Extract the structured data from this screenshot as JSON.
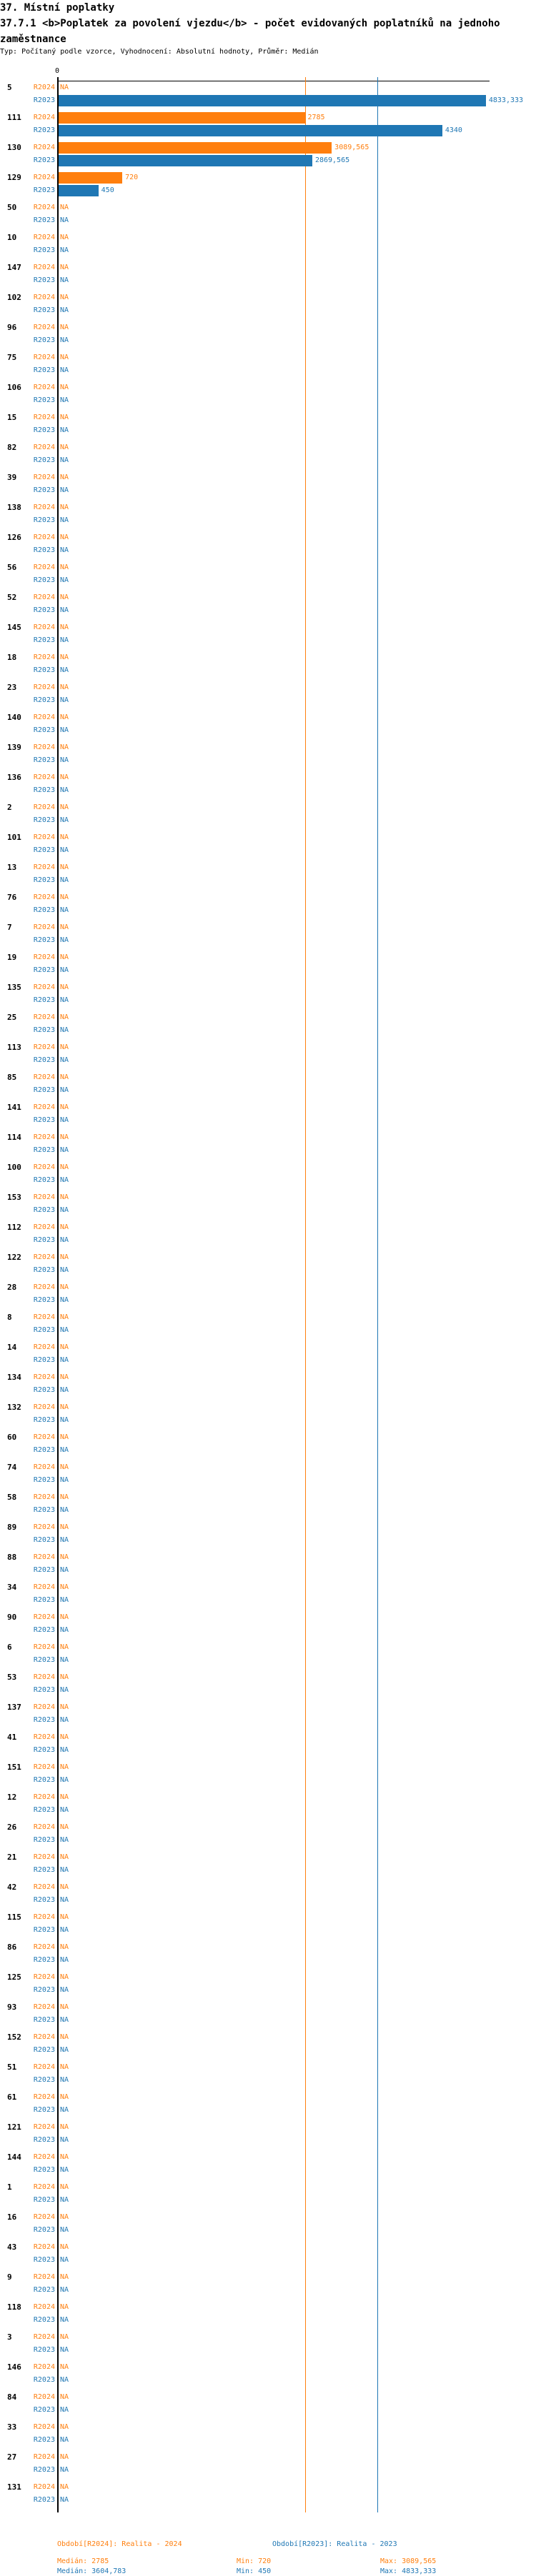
{
  "header": {
    "section_title": "37. Místní poplatky",
    "chart_title": "37.7.1 <b>Poplatek za povolení vjezdu</b> - počet evidovaných poplatníků na jednoho zaměstnance",
    "subtitle": "Typ: Počítaný podle vzorce, Vyhodnocení: Absolutní hodnoty, Průměr: Medián"
  },
  "chart_data": {
    "type": "bar",
    "orientation": "horizontal",
    "axis_tick_label": "0",
    "na_label": "NA",
    "colors": {
      "R2024": "#ff7f0e",
      "R2023": "#1f77b4"
    },
    "series_codes": [
      "R2024",
      "R2023"
    ],
    "rows": [
      {
        "label": "5",
        "R2024": null,
        "R2023": "4833,333"
      },
      {
        "label": "111",
        "R2024": "2785",
        "R2023": "4340"
      },
      {
        "label": "130",
        "R2024": "3089,565",
        "R2023": "2869,565"
      },
      {
        "label": "129",
        "R2024": "720",
        "R2023": "450"
      },
      {
        "label": "50",
        "R2024": null,
        "R2023": null
      },
      {
        "label": "10",
        "R2024": null,
        "R2023": null
      },
      {
        "label": "147",
        "R2024": null,
        "R2023": null
      },
      {
        "label": "102",
        "R2024": null,
        "R2023": null
      },
      {
        "label": "96",
        "R2024": null,
        "R2023": null
      },
      {
        "label": "75",
        "R2024": null,
        "R2023": null
      },
      {
        "label": "106",
        "R2024": null,
        "R2023": null
      },
      {
        "label": "15",
        "R2024": null,
        "R2023": null
      },
      {
        "label": "82",
        "R2024": null,
        "R2023": null
      },
      {
        "label": "39",
        "R2024": null,
        "R2023": null
      },
      {
        "label": "138",
        "R2024": null,
        "R2023": null
      },
      {
        "label": "126",
        "R2024": null,
        "R2023": null
      },
      {
        "label": "56",
        "R2024": null,
        "R2023": null
      },
      {
        "label": "52",
        "R2024": null,
        "R2023": null
      },
      {
        "label": "145",
        "R2024": null,
        "R2023": null
      },
      {
        "label": "18",
        "R2024": null,
        "R2023": null
      },
      {
        "label": "23",
        "R2024": null,
        "R2023": null
      },
      {
        "label": "140",
        "R2024": null,
        "R2023": null
      },
      {
        "label": "139",
        "R2024": null,
        "R2023": null
      },
      {
        "label": "136",
        "R2024": null,
        "R2023": null
      },
      {
        "label": "2",
        "R2024": null,
        "R2023": null
      },
      {
        "label": "101",
        "R2024": null,
        "R2023": null
      },
      {
        "label": "13",
        "R2024": null,
        "R2023": null
      },
      {
        "label": "76",
        "R2024": null,
        "R2023": null
      },
      {
        "label": "7",
        "R2024": null,
        "R2023": null
      },
      {
        "label": "19",
        "R2024": null,
        "R2023": null
      },
      {
        "label": "135",
        "R2024": null,
        "R2023": null
      },
      {
        "label": "25",
        "R2024": null,
        "R2023": null
      },
      {
        "label": "113",
        "R2024": null,
        "R2023": null
      },
      {
        "label": "85",
        "R2024": null,
        "R2023": null
      },
      {
        "label": "141",
        "R2024": null,
        "R2023": null
      },
      {
        "label": "114",
        "R2024": null,
        "R2023": null
      },
      {
        "label": "100",
        "R2024": null,
        "R2023": null
      },
      {
        "label": "153",
        "R2024": null,
        "R2023": null
      },
      {
        "label": "112",
        "R2024": null,
        "R2023": null
      },
      {
        "label": "122",
        "R2024": null,
        "R2023": null
      },
      {
        "label": "28",
        "R2024": null,
        "R2023": null
      },
      {
        "label": "8",
        "R2024": null,
        "R2023": null
      },
      {
        "label": "14",
        "R2024": null,
        "R2023": null
      },
      {
        "label": "134",
        "R2024": null,
        "R2023": null
      },
      {
        "label": "132",
        "R2024": null,
        "R2023": null
      },
      {
        "label": "60",
        "R2024": null,
        "R2023": null
      },
      {
        "label": "74",
        "R2024": null,
        "R2023": null
      },
      {
        "label": "58",
        "R2024": null,
        "R2023": null
      },
      {
        "label": "89",
        "R2024": null,
        "R2023": null
      },
      {
        "label": "88",
        "R2024": null,
        "R2023": null
      },
      {
        "label": "34",
        "R2024": null,
        "R2023": null
      },
      {
        "label": "90",
        "R2024": null,
        "R2023": null
      },
      {
        "label": "6",
        "R2024": null,
        "R2023": null
      },
      {
        "label": "53",
        "R2024": null,
        "R2023": null
      },
      {
        "label": "137",
        "R2024": null,
        "R2023": null
      },
      {
        "label": "41",
        "R2024": null,
        "R2023": null
      },
      {
        "label": "151",
        "R2024": null,
        "R2023": null
      },
      {
        "label": "12",
        "R2024": null,
        "R2023": null
      },
      {
        "label": "26",
        "R2024": null,
        "R2023": null
      },
      {
        "label": "21",
        "R2024": null,
        "R2023": null
      },
      {
        "label": "42",
        "R2024": null,
        "R2023": null
      },
      {
        "label": "115",
        "R2024": null,
        "R2023": null
      },
      {
        "label": "86",
        "R2024": null,
        "R2023": null
      },
      {
        "label": "125",
        "R2024": null,
        "R2023": null
      },
      {
        "label": "93",
        "R2024": null,
        "R2023": null
      },
      {
        "label": "152",
        "R2024": null,
        "R2023": null
      },
      {
        "label": "51",
        "R2024": null,
        "R2023": null
      },
      {
        "label": "61",
        "R2024": null,
        "R2023": null
      },
      {
        "label": "121",
        "R2024": null,
        "R2023": null
      },
      {
        "label": "144",
        "R2024": null,
        "R2023": null
      },
      {
        "label": "1",
        "R2024": null,
        "R2023": null
      },
      {
        "label": "16",
        "R2024": null,
        "R2023": null
      },
      {
        "label": "43",
        "R2024": null,
        "R2023": null
      },
      {
        "label": "9",
        "R2024": null,
        "R2023": null
      },
      {
        "label": "118",
        "R2024": null,
        "R2023": null
      },
      {
        "label": "3",
        "R2024": null,
        "R2023": null
      },
      {
        "label": "146",
        "R2024": null,
        "R2023": null
      },
      {
        "label": "84",
        "R2024": null,
        "R2023": null
      },
      {
        "label": "33",
        "R2024": null,
        "R2023": null
      },
      {
        "label": "27",
        "R2024": null,
        "R2023": null
      },
      {
        "label": "131",
        "R2024": null,
        "R2023": null
      }
    ],
    "median_lines": {
      "R2024": 2785,
      "R2023": 3604.783
    },
    "legend": {
      "r2024": {
        "title": "Období[R2024]: Realita - 2024",
        "median": "Medián: 2785",
        "min": "Min: 720",
        "max": "Max: 3089,565"
      },
      "r2023": {
        "title": "Období[R2023]: Realita - 2023",
        "median": "Medián: 3604,783",
        "min": "Min: 450",
        "max": "Max: 4833,333"
      }
    }
  }
}
